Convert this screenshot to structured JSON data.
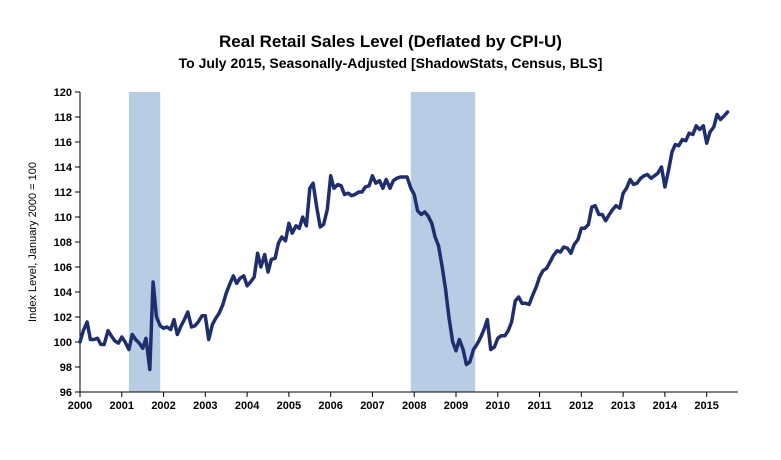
{
  "chart_data": {
    "type": "line",
    "title": "Real Retail Sales Level (Deflated by CPI-U)",
    "subtitle": "To July 2015, Seasonally-Adjusted [ShadowStats, Census, BLS]",
    "ylabel": "Index Level, January 2000 = 100",
    "xlabel": "",
    "xlim": [
      2000.0,
      2015.75
    ],
    "ylim": [
      96,
      120
    ],
    "x_ticks": [
      "2000",
      "2001",
      "2002",
      "2003",
      "2004",
      "2005",
      "2006",
      "2007",
      "2008",
      "2009",
      "2010",
      "2011",
      "2012",
      "2013",
      "2014",
      "2015"
    ],
    "y_ticks": [
      "96",
      "98",
      "100",
      "102",
      "104",
      "106",
      "108",
      "110",
      "112",
      "114",
      "116",
      "118",
      "120"
    ],
    "grid": false,
    "legend": "none",
    "line_color": "#1f2f6e",
    "recession_color": "#b8cce4",
    "recessions": [
      {
        "start": 2001.17,
        "end": 2001.92
      },
      {
        "start": 2007.92,
        "end": 2009.46
      }
    ],
    "series": [
      {
        "x": [
          2000.0,
          2000.08,
          2000.17,
          2000.25,
          2000.33,
          2000.42,
          2000.5,
          2000.58,
          2000.67,
          2000.75,
          2000.83,
          2000.92,
          2001.0,
          2001.08,
          2001.17,
          2001.25,
          2001.33,
          2001.42,
          2001.5,
          2001.58,
          2001.67,
          2001.75,
          2001.83,
          2001.92,
          2002.0,
          2002.08,
          2002.17,
          2002.25,
          2002.33,
          2002.42,
          2002.5,
          2002.58,
          2002.67,
          2002.75,
          2002.83,
          2002.92,
          2003.0,
          2003.08,
          2003.17,
          2003.25,
          2003.33,
          2003.42,
          2003.5,
          2003.58,
          2003.67,
          2003.75,
          2003.83,
          2003.92,
          2004.0,
          2004.08,
          2004.17,
          2004.25,
          2004.33,
          2004.42,
          2004.5,
          2004.58,
          2004.67,
          2004.75,
          2004.83,
          2004.92,
          2005.0,
          2005.08,
          2005.17,
          2005.25,
          2005.33,
          2005.42,
          2005.5,
          2005.58,
          2005.67,
          2005.75,
          2005.83,
          2005.92,
          2006.0,
          2006.08,
          2006.17,
          2006.25,
          2006.33,
          2006.42,
          2006.5,
          2006.58,
          2006.67,
          2006.75,
          2006.83,
          2006.92,
          2007.0,
          2007.08,
          2007.17,
          2007.25,
          2007.33,
          2007.42,
          2007.5,
          2007.58,
          2007.67,
          2007.75,
          2007.83,
          2007.92,
          2008.0,
          2008.08,
          2008.17,
          2008.25,
          2008.33,
          2008.42,
          2008.5,
          2008.58,
          2008.67,
          2008.75,
          2008.83,
          2008.92,
          2009.0,
          2009.08,
          2009.17,
          2009.25,
          2009.33,
          2009.42,
          2009.5,
          2009.58,
          2009.67,
          2009.75,
          2009.83,
          2009.92,
          2010.0,
          2010.08,
          2010.17,
          2010.25,
          2010.33,
          2010.42,
          2010.5,
          2010.58,
          2010.67,
          2010.75,
          2010.83,
          2010.92,
          2011.0,
          2011.08,
          2011.17,
          2011.25,
          2011.33,
          2011.42,
          2011.5,
          2011.58,
          2011.67,
          2011.75,
          2011.83,
          2011.92,
          2012.0,
          2012.08,
          2012.17,
          2012.25,
          2012.33,
          2012.42,
          2012.5,
          2012.58,
          2012.67,
          2012.75,
          2012.83,
          2012.92,
          2013.0,
          2013.08,
          2013.17,
          2013.25,
          2013.33,
          2013.42,
          2013.5,
          2013.58,
          2013.67,
          2013.75,
          2013.83,
          2013.92,
          2014.0,
          2014.08,
          2014.17,
          2014.25,
          2014.33,
          2014.42,
          2014.5,
          2014.58,
          2014.67,
          2014.75,
          2014.83,
          2014.92,
          2015.0,
          2015.08,
          2015.17,
          2015.25,
          2015.33,
          2015.42,
          2015.5
        ],
        "y": [
          100.0,
          100.9,
          101.6,
          100.2,
          100.2,
          100.3,
          99.8,
          99.8,
          100.9,
          100.5,
          100.1,
          99.9,
          100.4,
          100.0,
          99.4,
          100.6,
          100.2,
          99.9,
          99.5,
          100.3,
          97.8,
          104.8,
          102.0,
          101.3,
          101.1,
          101.2,
          101.0,
          101.8,
          100.6,
          101.3,
          101.8,
          102.4,
          101.2,
          101.3,
          101.6,
          102.1,
          102.1,
          100.2,
          101.4,
          101.9,
          102.3,
          103.0,
          103.9,
          104.6,
          105.3,
          104.7,
          105.1,
          105.3,
          104.5,
          104.8,
          105.2,
          107.1,
          106.0,
          107.0,
          105.6,
          106.6,
          106.7,
          107.9,
          108.4,
          108.1,
          109.5,
          108.7,
          109.3,
          109.1,
          110.0,
          109.3,
          112.3,
          112.7,
          110.7,
          109.2,
          109.4,
          110.6,
          113.3,
          112.3,
          112.6,
          112.5,
          111.8,
          111.9,
          111.7,
          111.8,
          112.0,
          112.0,
          112.4,
          112.5,
          113.3,
          112.7,
          112.9,
          112.3,
          113.0,
          112.3,
          112.9,
          113.1,
          113.2,
          113.2,
          113.2,
          112.3,
          111.8,
          110.5,
          110.2,
          110.4,
          110.1,
          109.5,
          108.4,
          107.7,
          106.0,
          104.2,
          102.0,
          100.0,
          99.3,
          100.2,
          99.4,
          98.2,
          98.4,
          99.4,
          99.8,
          100.3,
          101.0,
          101.8,
          99.4,
          99.6,
          100.3,
          100.5,
          100.5,
          100.9,
          101.6,
          103.3,
          103.6,
          103.1,
          103.1,
          103.0,
          103.7,
          104.4,
          105.2,
          105.7,
          105.9,
          106.4,
          106.9,
          107.3,
          107.2,
          107.6,
          107.5,
          107.1,
          107.8,
          108.2,
          109.1,
          109.1,
          109.4,
          110.8,
          110.9,
          110.2,
          110.2,
          109.7,
          110.2,
          110.6,
          110.9,
          110.7,
          111.9,
          112.3,
          113.0,
          112.6,
          112.7,
          113.1,
          113.3,
          113.4,
          113.1,
          113.3,
          113.5,
          114.0,
          112.4,
          113.6,
          115.2,
          115.8,
          115.7,
          116.2,
          116.1,
          116.7,
          116.6,
          117.3,
          117.0,
          117.3,
          115.9,
          116.8,
          117.2,
          118.2,
          117.8,
          118.1,
          118.4
        ]
      }
    ]
  }
}
